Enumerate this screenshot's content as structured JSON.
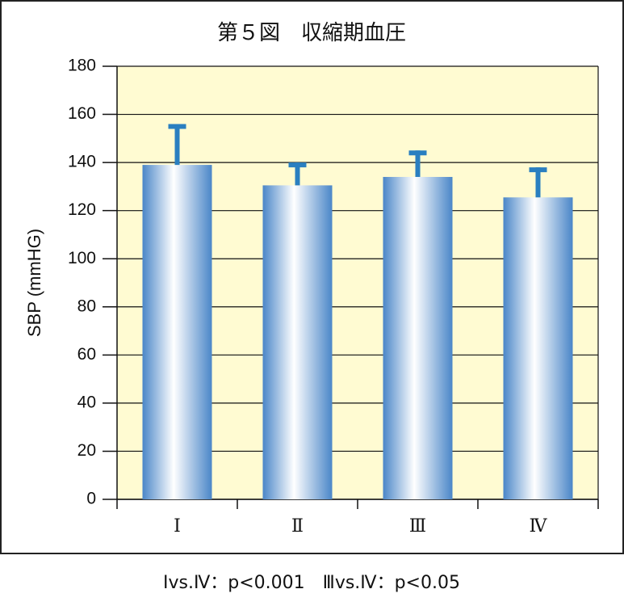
{
  "chart_data": {
    "type": "bar",
    "title": "第５図　収縮期血圧",
    "y_label": "SBP (mmHG)",
    "categories": [
      "Ⅰ",
      "Ⅱ",
      "Ⅲ",
      "Ⅳ"
    ],
    "values": [
      139,
      130.5,
      134,
      125.5
    ],
    "errors": [
      17,
      9.5,
      11,
      12.5
    ],
    "color": "#4a86c8",
    "error_color": "#2a7fc0",
    "ylim": [
      0,
      180
    ],
    "yticks": [
      0,
      20,
      40,
      60,
      80,
      100,
      120,
      140,
      160,
      180
    ],
    "grid": true,
    "annotation": "Ⅰvs.Ⅳ：p<0.001　Ⅲvs.Ⅳ：p<0.05"
  }
}
